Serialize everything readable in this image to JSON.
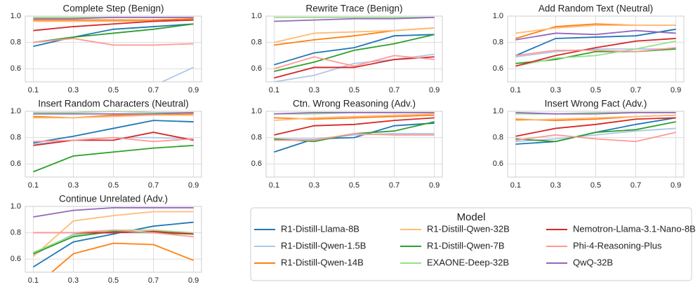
{
  "legend_title": "Model",
  "chart_data": [
    {
      "type": "line",
      "title": "Complete Step (Benign)",
      "x": [
        0.1,
        0.3,
        0.5,
        0.7,
        0.9
      ],
      "xlim": [
        0.06,
        0.94
      ],
      "xticks": [
        0.1,
        0.3,
        0.5,
        0.7,
        0.9
      ],
      "ylim": [
        0.5,
        1.0
      ],
      "yticks": [
        0.6,
        0.8,
        {
          "value": 1.0,
          "label": "1.0"
        }
      ],
      "grid": true,
      "series": [
        {
          "name": "R1-Distill-Llama-8B",
          "color": "#1f77b4",
          "values": [
            0.77,
            0.84,
            0.9,
            0.92,
            0.94
          ]
        },
        {
          "name": "R1-Distill-Qwen-1.5B",
          "color": "#aec7e8",
          "values": [
            null,
            null,
            null,
            0.47,
            0.61
          ]
        },
        {
          "name": "R1-Distill-Qwen-14B",
          "color": "#ff7f0e",
          "values": [
            0.97,
            0.97,
            0.97,
            0.97,
            0.98
          ]
        },
        {
          "name": "R1-Distill-Qwen-32B",
          "color": "#ffbb78",
          "values": [
            0.96,
            0.96,
            0.96,
            0.96,
            0.97
          ]
        },
        {
          "name": "R1-Distill-Qwen-7B",
          "color": "#2ca02c",
          "values": [
            0.8,
            0.84,
            0.87,
            0.9,
            0.94
          ]
        },
        {
          "name": "EXAONE-Deep-32B",
          "color": "#98df8a",
          "values": [
            0.99,
            0.99,
            0.99,
            0.99,
            0.99
          ]
        },
        {
          "name": "Nemotron-Llama-3.1-Nano-8B",
          "color": "#d62728",
          "values": [
            0.89,
            0.92,
            0.94,
            0.96,
            0.97
          ]
        },
        {
          "name": "Phi-4-Reasoning-Plus",
          "color": "#ff9896",
          "values": [
            0.8,
            0.83,
            0.78,
            0.78,
            0.79
          ]
        },
        {
          "name": "QwQ-32B",
          "color": "#9467bd",
          "values": [
            0.98,
            0.98,
            0.99,
            0.99,
            0.99
          ]
        }
      ]
    },
    {
      "type": "line",
      "title": "Rewrite Trace (Benign)",
      "x": [
        0.1,
        0.3,
        0.5,
        0.7,
        0.9
      ],
      "xlim": [
        0.06,
        0.94
      ],
      "xticks": [
        0.1,
        0.3,
        0.5,
        0.7,
        0.9
      ],
      "ylim": [
        0.5,
        1.0
      ],
      "yticks": [
        0.6,
        0.8,
        {
          "value": 1.0,
          "label": "1.0"
        }
      ],
      "grid": true,
      "series": [
        {
          "name": "R1-Distill-Llama-8B",
          "color": "#1f77b4",
          "values": [
            0.63,
            0.72,
            0.76,
            0.85,
            0.86
          ]
        },
        {
          "name": "R1-Distill-Qwen-1.5B",
          "color": "#aec7e8",
          "values": [
            0.5,
            0.55,
            0.64,
            0.67,
            0.71
          ]
        },
        {
          "name": "R1-Distill-Qwen-14B",
          "color": "#ff7f0e",
          "values": [
            0.78,
            0.82,
            0.85,
            0.89,
            0.91
          ]
        },
        {
          "name": "R1-Distill-Qwen-32B",
          "color": "#ffbb78",
          "values": [
            0.8,
            0.87,
            0.88,
            0.89,
            0.91
          ]
        },
        {
          "name": "R1-Distill-Qwen-7B",
          "color": "#2ca02c",
          "values": [
            0.58,
            0.65,
            0.74,
            0.79,
            0.86
          ]
        },
        {
          "name": "EXAONE-Deep-32B",
          "color": "#98df8a",
          "values": [
            0.99,
            0.99,
            0.99,
            0.99,
            0.99
          ]
        },
        {
          "name": "Nemotron-Llama-3.1-Nano-8B",
          "color": "#d62728",
          "values": [
            0.53,
            0.61,
            0.61,
            0.67,
            0.69
          ]
        },
        {
          "name": "Phi-4-Reasoning-Plus",
          "color": "#ff9896",
          "values": [
            0.6,
            0.69,
            0.62,
            0.7,
            0.67
          ]
        },
        {
          "name": "QwQ-32B",
          "color": "#9467bd",
          "values": [
            0.96,
            0.97,
            0.98,
            0.98,
            0.99
          ]
        }
      ]
    },
    {
      "type": "line",
      "title": "Add Random Text (Neutral)",
      "x": [
        0.1,
        0.3,
        0.5,
        0.7,
        0.9
      ],
      "xlim": [
        0.06,
        0.94
      ],
      "xticks": [
        0.1,
        0.3,
        0.5,
        0.7,
        0.9
      ],
      "ylim": [
        0.5,
        1.0
      ],
      "yticks": [
        0.6,
        0.8,
        {
          "value": 1.0,
          "label": "1.0"
        }
      ],
      "grid": true,
      "series": [
        {
          "name": "R1-Distill-Llama-8B",
          "color": "#1f77b4",
          "values": [
            0.7,
            0.83,
            0.84,
            0.85,
            0.9
          ]
        },
        {
          "name": "R1-Distill-Qwen-1.5B",
          "color": "#aec7e8",
          "values": [
            0.69,
            0.73,
            0.75,
            0.75,
            0.75
          ]
        },
        {
          "name": "R1-Distill-Qwen-14B",
          "color": "#ff7f0e",
          "values": [
            0.83,
            0.92,
            0.94,
            0.93,
            0.93
          ]
        },
        {
          "name": "R1-Distill-Qwen-32B",
          "color": "#ffbb78",
          "values": [
            0.87,
            0.91,
            0.93,
            0.93,
            0.93
          ]
        },
        {
          "name": "R1-Distill-Qwen-7B",
          "color": "#2ca02c",
          "values": [
            0.64,
            0.67,
            0.73,
            0.73,
            0.75
          ]
        },
        {
          "name": "EXAONE-Deep-32B",
          "color": "#98df8a",
          "values": [
            0.62,
            0.68,
            0.7,
            0.75,
            0.81
          ]
        },
        {
          "name": "Nemotron-Llama-3.1-Nano-8B",
          "color": "#d62728",
          "values": [
            0.62,
            0.7,
            0.76,
            0.81,
            0.83
          ]
        },
        {
          "name": "Phi-4-Reasoning-Plus",
          "color": "#ff9896",
          "values": [
            0.7,
            0.74,
            0.74,
            0.73,
            0.76
          ]
        },
        {
          "name": "QwQ-32B",
          "color": "#9467bd",
          "values": [
            0.82,
            0.87,
            0.86,
            0.89,
            0.87
          ]
        }
      ]
    },
    {
      "type": "line",
      "title": "Insert Random Characters (Neutral)",
      "x": [
        0.1,
        0.3,
        0.5,
        0.7,
        0.9
      ],
      "xlim": [
        0.06,
        0.94
      ],
      "xticks": [
        0.1,
        0.3,
        0.5,
        0.7,
        0.9
      ],
      "ylim": [
        0.5,
        1.0
      ],
      "yticks": [
        0.6,
        0.8,
        {
          "value": 1.0,
          "label": "1.0"
        }
      ],
      "grid": true,
      "series": [
        {
          "name": "R1-Distill-Llama-8B",
          "color": "#1f77b4",
          "values": [
            0.76,
            0.81,
            0.87,
            0.93,
            0.92
          ]
        },
        {
          "name": "R1-Distill-Qwen-1.5B",
          "color": "#aec7e8",
          "values": [
            0.75,
            0.78,
            0.8,
            0.8,
            0.79
          ]
        },
        {
          "name": "R1-Distill-Qwen-14B",
          "color": "#ff7f0e",
          "values": [
            0.96,
            0.95,
            0.97,
            0.97,
            0.98
          ]
        },
        {
          "name": "R1-Distill-Qwen-32B",
          "color": "#ffbb78",
          "values": [
            0.95,
            0.95,
            0.96,
            0.97,
            0.97
          ]
        },
        {
          "name": "R1-Distill-Qwen-7B",
          "color": "#2ca02c",
          "values": [
            0.54,
            0.66,
            0.69,
            0.72,
            0.74
          ]
        },
        {
          "name": "EXAONE-Deep-32B",
          "color": "#98df8a",
          "values": [
            0.99,
            0.99,
            1.0,
            0.99,
            0.99
          ]
        },
        {
          "name": "Nemotron-Llama-3.1-Nano-8B",
          "color": "#d62728",
          "values": [
            0.74,
            0.78,
            0.78,
            0.84,
            0.78
          ]
        },
        {
          "name": "Phi-4-Reasoning-Plus",
          "color": "#ff9896",
          "values": [
            0.77,
            0.78,
            0.8,
            0.77,
            0.79
          ]
        },
        {
          "name": "QwQ-32B",
          "color": "#9467bd",
          "values": [
            0.98,
            0.98,
            0.98,
            0.98,
            0.99
          ]
        }
      ]
    },
    {
      "type": "line",
      "title": "Ctn. Wrong Reasoning (Adv.)",
      "x": [
        0.1,
        0.3,
        0.5,
        0.7,
        0.9
      ],
      "xlim": [
        0.06,
        0.94
      ],
      "xticks": [
        0.1,
        0.3,
        0.5,
        0.7,
        0.9
      ],
      "ylim": [
        0.5,
        1.0
      ],
      "yticks": [
        0.6,
        0.8,
        {
          "value": 1.0,
          "label": "1.0"
        }
      ],
      "grid": true,
      "series": [
        {
          "name": "R1-Distill-Llama-8B",
          "color": "#1f77b4",
          "values": [
            0.69,
            0.79,
            0.8,
            0.89,
            0.91
          ]
        },
        {
          "name": "R1-Distill-Qwen-1.5B",
          "color": "#aec7e8",
          "values": [
            0.79,
            0.79,
            0.82,
            0.83,
            0.83
          ]
        },
        {
          "name": "R1-Distill-Qwen-14B",
          "color": "#ff7f0e",
          "values": [
            0.95,
            0.94,
            0.95,
            0.96,
            0.97
          ]
        },
        {
          "name": "R1-Distill-Qwen-32B",
          "color": "#ffbb78",
          "values": [
            0.93,
            0.95,
            0.96,
            0.97,
            0.98
          ]
        },
        {
          "name": "R1-Distill-Qwen-7B",
          "color": "#2ca02c",
          "values": [
            0.79,
            0.77,
            0.83,
            0.85,
            0.92
          ]
        },
        {
          "name": "EXAONE-Deep-32B",
          "color": "#98df8a",
          "values": [
            0.98,
            0.98,
            0.99,
            0.99,
            0.99
          ]
        },
        {
          "name": "Nemotron-Llama-3.1-Nano-8B",
          "color": "#d62728",
          "values": [
            0.82,
            0.89,
            0.9,
            0.93,
            0.95
          ]
        },
        {
          "name": "Phi-4-Reasoning-Plus",
          "color": "#ff9896",
          "values": [
            0.78,
            0.78,
            0.83,
            0.82,
            0.82
          ]
        },
        {
          "name": "QwQ-32B",
          "color": "#9467bd",
          "values": [
            0.98,
            0.99,
            0.99,
            0.99,
            0.99
          ]
        }
      ]
    },
    {
      "type": "line",
      "title": "Insert Wrong Fact (Adv.)",
      "x": [
        0.1,
        0.3,
        0.5,
        0.7,
        0.9
      ],
      "xlim": [
        0.06,
        0.94
      ],
      "xticks": [
        0.1,
        0.3,
        0.5,
        0.7,
        0.9
      ],
      "ylim": [
        0.5,
        1.0
      ],
      "yticks": [
        0.6,
        0.8,
        {
          "value": 1.0,
          "label": "1.0"
        }
      ],
      "grid": true,
      "series": [
        {
          "name": "R1-Distill-Llama-8B",
          "color": "#1f77b4",
          "values": [
            0.75,
            0.77,
            0.84,
            0.9,
            0.95
          ]
        },
        {
          "name": "R1-Distill-Qwen-1.5B",
          "color": "#aec7e8",
          "values": [
            0.77,
            0.79,
            0.82,
            0.85,
            0.87
          ]
        },
        {
          "name": "R1-Distill-Qwen-14B",
          "color": "#ff7f0e",
          "values": [
            0.94,
            0.93,
            0.94,
            0.96,
            0.97
          ]
        },
        {
          "name": "R1-Distill-Qwen-32B",
          "color": "#ffbb78",
          "values": [
            0.93,
            0.94,
            0.95,
            0.96,
            0.97
          ]
        },
        {
          "name": "R1-Distill-Qwen-7B",
          "color": "#2ca02c",
          "values": [
            0.79,
            0.77,
            0.84,
            0.86,
            0.92
          ]
        },
        {
          "name": "EXAONE-Deep-32B",
          "color": "#98df8a",
          "values": [
            0.98,
            0.98,
            0.99,
            0.99,
            0.99
          ]
        },
        {
          "name": "Nemotron-Llama-3.1-Nano-8B",
          "color": "#d62728",
          "values": [
            0.81,
            0.87,
            0.9,
            0.94,
            0.95
          ]
        },
        {
          "name": "Phi-4-Reasoning-Plus",
          "color": "#ff9896",
          "values": [
            0.78,
            0.82,
            0.79,
            0.77,
            0.84
          ]
        },
        {
          "name": "QwQ-32B",
          "color": "#9467bd",
          "values": [
            0.99,
            0.98,
            0.98,
            0.99,
            0.99
          ]
        }
      ]
    },
    {
      "type": "line",
      "title": "Continue Unrelated (Adv.)",
      "x": [
        0.1,
        0.3,
        0.5,
        0.7,
        0.9
      ],
      "xlim": [
        0.06,
        0.94
      ],
      "xticks": [
        0.1,
        0.3,
        0.5,
        0.7,
        0.9
      ],
      "ylim": [
        0.5,
        1.0
      ],
      "yticks": [
        0.6,
        0.8,
        {
          "value": 1.0,
          "label": "1.0"
        }
      ],
      "grid": true,
      "series": [
        {
          "name": "R1-Distill-Llama-8B",
          "color": "#1f77b4",
          "values": [
            0.54,
            0.73,
            0.79,
            0.85,
            0.88
          ]
        },
        {
          "name": "R1-Distill-Qwen-1.5B",
          "color": "#aec7e8",
          "values": [
            0.63,
            0.79,
            0.8,
            0.8,
            0.8
          ]
        },
        {
          "name": "R1-Distill-Qwen-14B",
          "color": "#ff7f0e",
          "values": [
            0.38,
            0.64,
            0.72,
            0.71,
            0.59
          ]
        },
        {
          "name": "R1-Distill-Qwen-32B",
          "color": "#ffbb78",
          "values": [
            0.62,
            0.89,
            0.93,
            0.96,
            0.96
          ]
        },
        {
          "name": "R1-Distill-Qwen-7B",
          "color": "#2ca02c",
          "values": [
            0.64,
            0.77,
            0.81,
            0.8,
            0.79
          ]
        },
        {
          "name": "EXAONE-Deep-32B",
          "color": "#98df8a",
          "values": [
            0.65,
            0.78,
            0.82,
            0.82,
            0.8
          ]
        },
        {
          "name": "Nemotron-Llama-3.1-Nano-8B",
          "color": "#d62728",
          "values": [
            0.8,
            0.8,
            0.8,
            0.81,
            0.79
          ]
        },
        {
          "name": "Phi-4-Reasoning-Plus",
          "color": "#ff9896",
          "values": [
            0.8,
            0.8,
            0.82,
            0.8,
            0.77
          ]
        },
        {
          "name": "QwQ-32B",
          "color": "#9467bd",
          "values": [
            0.92,
            0.97,
            0.99,
            0.99,
            0.99
          ]
        }
      ]
    }
  ]
}
